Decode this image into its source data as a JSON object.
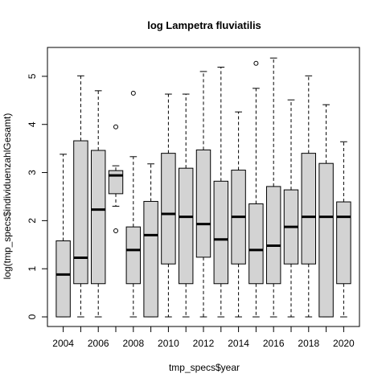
{
  "chart_data": {
    "type": "box",
    "title": "log Lampetra fluviatilis",
    "xlabel": "tmp_specs$year",
    "ylabel": "log(tmp_specs$individuenzahlGesamt)",
    "ylim": [
      -0.2,
      5.6
    ],
    "y_ticks": [
      0,
      1,
      2,
      3,
      4,
      5
    ],
    "x_tick_labels": [
      "2004",
      "2006",
      "2008",
      "2010",
      "2012",
      "2014",
      "2016",
      "2018",
      "2020"
    ],
    "grid": false,
    "box_color": "#d3d3d3",
    "boxes": [
      {
        "year": "2004",
        "min": 0,
        "q1": 0,
        "median": 0.88,
        "q3": 1.58,
        "max": 3.38,
        "outliers": []
      },
      {
        "year": "2005",
        "min": 0,
        "q1": 0.69,
        "median": 1.23,
        "q3": 3.66,
        "max": 5.01,
        "outliers": []
      },
      {
        "year": "2006",
        "min": 0,
        "q1": 0.69,
        "median": 2.23,
        "q3": 3.46,
        "max": 4.7,
        "outliers": []
      },
      {
        "year": "2007",
        "min": 2.3,
        "q1": 2.56,
        "median": 2.94,
        "q3": 3.04,
        "max": 3.14,
        "outliers": [
          3.95,
          1.79
        ]
      },
      {
        "year": "2008",
        "min": 0,
        "q1": 0.69,
        "median": 1.39,
        "q3": 1.87,
        "max": 3.33,
        "outliers": [
          4.65
        ]
      },
      {
        "year": "2009",
        "min": 0,
        "q1": 0,
        "median": 1.7,
        "q3": 2.4,
        "max": 3.18,
        "outliers": []
      },
      {
        "year": "2010",
        "min": 0,
        "q1": 1.1,
        "median": 2.14,
        "q3": 3.4,
        "max": 4.63,
        "outliers": []
      },
      {
        "year": "2011",
        "min": 0,
        "q1": 0.69,
        "median": 2.08,
        "q3": 3.09,
        "max": 4.63,
        "outliers": []
      },
      {
        "year": "2012",
        "min": 0,
        "q1": 1.24,
        "median": 1.93,
        "q3": 3.47,
        "max": 5.1,
        "outliers": []
      },
      {
        "year": "2013",
        "min": 0,
        "q1": 0.69,
        "median": 1.61,
        "q3": 2.82,
        "max": 5.19,
        "outliers": []
      },
      {
        "year": "2014",
        "min": 0,
        "q1": 1.1,
        "median": 2.08,
        "q3": 3.05,
        "max": 4.26,
        "outliers": []
      },
      {
        "year": "2015",
        "min": 0,
        "q1": 0.69,
        "median": 1.39,
        "q3": 2.35,
        "max": 4.75,
        "outliers": [
          5.27
        ]
      },
      {
        "year": "2016",
        "min": 0,
        "q1": 0.69,
        "median": 1.48,
        "q3": 2.71,
        "max": 5.38,
        "outliers": []
      },
      {
        "year": "2017",
        "min": 0,
        "q1": 1.1,
        "median": 1.87,
        "q3": 2.64,
        "max": 4.51,
        "outliers": []
      },
      {
        "year": "2018",
        "min": 0,
        "q1": 1.1,
        "median": 2.08,
        "q3": 3.4,
        "max": 5.01,
        "outliers": []
      },
      {
        "year": "2019",
        "min": 0,
        "q1": 0,
        "median": 2.08,
        "q3": 3.19,
        "max": 4.41,
        "outliers": []
      },
      {
        "year": "2020",
        "min": 0,
        "q1": 0.69,
        "median": 2.08,
        "q3": 2.39,
        "max": 3.64,
        "outliers": []
      }
    ]
  }
}
